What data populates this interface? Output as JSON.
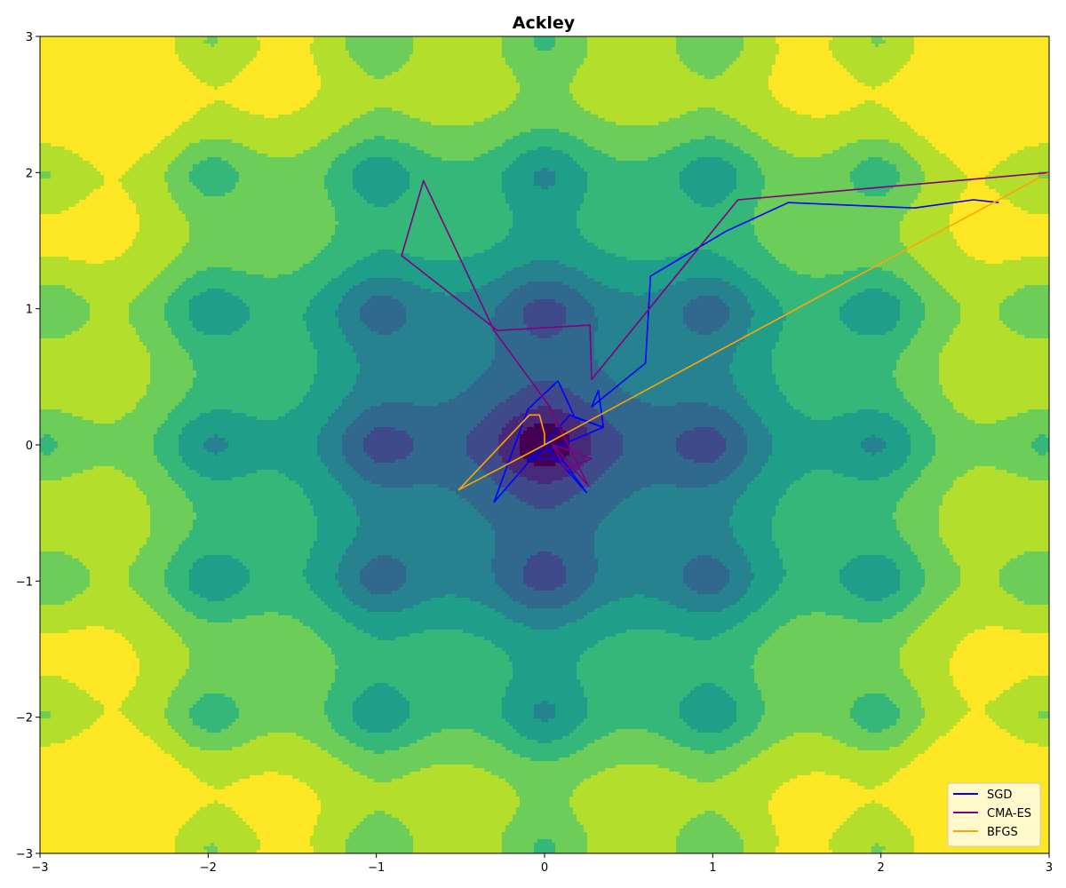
{
  "chart_data": {
    "type": "contour",
    "title": "Ackley",
    "xlabel": "",
    "ylabel": "",
    "xlim": [
      -3,
      3
    ],
    "ylim": [
      -3,
      3
    ],
    "x_ticks": [
      -3,
      -2,
      -1,
      0,
      1,
      2,
      3
    ],
    "y_ticks": [
      -3,
      -2,
      -1,
      0,
      1,
      2,
      3
    ],
    "x_tick_labels": [
      "−3",
      "−2",
      "−1",
      "0",
      "1",
      "2",
      "3"
    ],
    "y_tick_labels": [
      "−3",
      "−2",
      "−1",
      "0",
      "1",
      "2",
      "3"
    ],
    "grid": false,
    "legend_position": "bottom-right",
    "contour": {
      "function": "ackley",
      "colormap": "viridis",
      "levels": [
        0,
        1,
        2,
        3,
        4,
        5,
        6,
        7,
        8,
        9,
        10
      ]
    },
    "series": [
      {
        "name": "SGD",
        "color": "#0000ff",
        "x": [
          2.7,
          2.55,
          2.2,
          1.45,
          1.08,
          0.63,
          0.6,
          0.28,
          0.32,
          0.35,
          0.15,
          -0.3,
          -0.1,
          0.08,
          0.18,
          0.35,
          0.1,
          -0.1,
          0.1,
          0.25,
          0.0,
          0.05
        ],
        "y": [
          1.78,
          1.8,
          1.74,
          1.78,
          1.57,
          1.24,
          0.6,
          0.28,
          0.4,
          0.13,
          0.22,
          -0.42,
          0.26,
          0.47,
          0.2,
          0.13,
          0.0,
          -0.1,
          -0.1,
          -0.35,
          0.0,
          0.02
        ]
      },
      {
        "name": "CMA-ES",
        "color": "#800080",
        "x": [
          3.0,
          1.15,
          0.28,
          0.27,
          -0.28,
          -0.85,
          -0.72,
          -0.3,
          0.02,
          0.26,
          0.05,
          0.28,
          0.12,
          0.05
        ],
        "y": [
          2.0,
          1.8,
          0.48,
          0.88,
          0.84,
          1.39,
          1.94,
          0.84,
          0.3,
          -0.3,
          0.0,
          -0.1,
          -0.18,
          0.0
        ]
      },
      {
        "name": "BFGS",
        "color": "#ffa500",
        "x": [
          3.0,
          0.0,
          -0.51,
          -0.09,
          -0.03,
          0.0,
          0.0
        ],
        "y": [
          2.0,
          0.0,
          -0.33,
          0.22,
          0.22,
          0.08,
          0.0
        ]
      }
    ]
  }
}
